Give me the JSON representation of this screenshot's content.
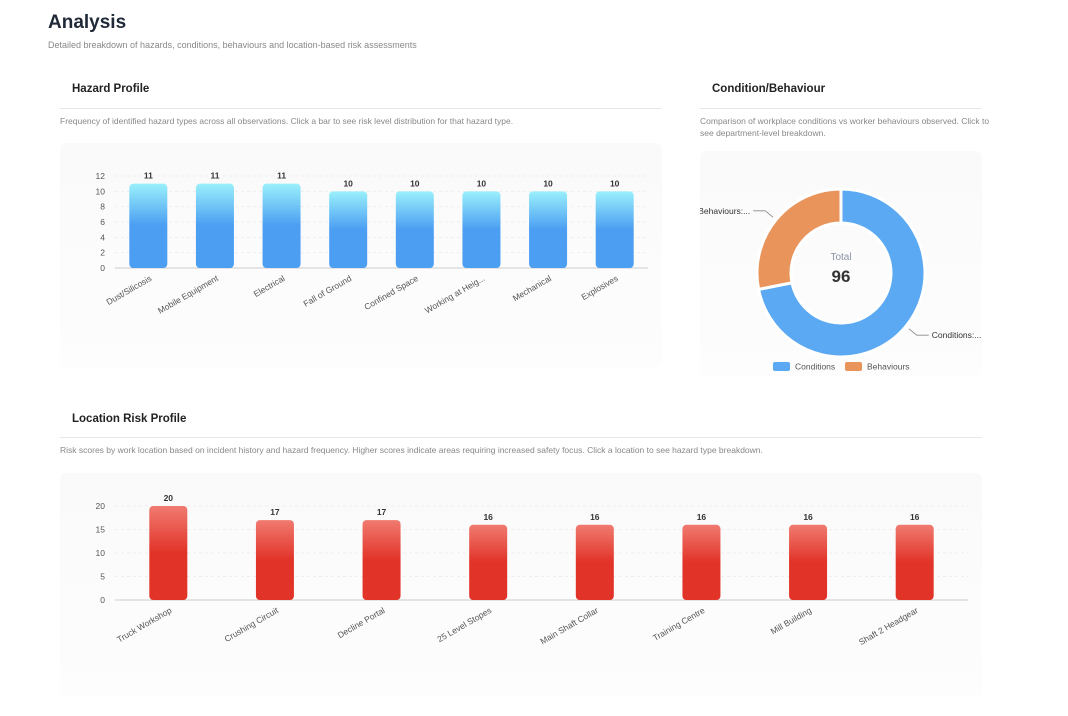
{
  "page": {
    "title": "Analysis",
    "subtitle": "Detailed breakdown of hazards, conditions, behaviours and location-based risk assessments"
  },
  "hazard": {
    "title": "Hazard Profile",
    "description": "Frequency of identified hazard types across all observations. Click a bar to see risk level distribution for that hazard type."
  },
  "condition": {
    "title": "Condition/Behaviour",
    "description": "Comparison of workplace conditions vs worker behaviours observed. Click to see department-level breakdown."
  },
  "location": {
    "title": "Location Risk Profile",
    "description": "Risk scores by work location based on incident history and hazard frequency. Higher scores indicate areas requiring increased safety focus. Click a location to see hazard type breakdown."
  },
  "chart_data": [
    {
      "type": "bar",
      "categories": [
        "Dust/Silicosis",
        "Mobile Equipment",
        "Electrical",
        "Fall of Ground",
        "Confined Space",
        "Working at Heig...",
        "Mechanical",
        "Explosives"
      ],
      "values": [
        11,
        11,
        11,
        10,
        10,
        10,
        10,
        10
      ],
      "ylim": [
        0,
        12
      ],
      "yticks": [
        0,
        2,
        4,
        6,
        8,
        10,
        12
      ],
      "grid": true,
      "color_top": "#9af0fb",
      "color_bottom": "#4b9ef2"
    },
    {
      "type": "pie",
      "variant": "donut",
      "center_label": "Total",
      "center_value": "96",
      "slices": [
        {
          "name": "Conditions",
          "label": "Conditions:...",
          "value": 69,
          "color": "#5aa9f2"
        },
        {
          "name": "Behaviours",
          "label": "Behaviours:...",
          "value": 27,
          "color": "#e8945a"
        }
      ],
      "legend": "bottom"
    },
    {
      "type": "bar",
      "categories": [
        "Truck Workshop",
        "Crushing Circuit",
        "Decline Portal",
        "25 Level Stopes",
        "Main Shaft Collar",
        "Training Centre",
        "Mill Building",
        "Shaft 2 Headgear"
      ],
      "values": [
        20,
        17,
        17,
        16,
        16,
        16,
        16,
        16
      ],
      "ylim": [
        0,
        20
      ],
      "yticks": [
        0,
        5,
        10,
        15,
        20
      ],
      "grid": true,
      "color_top": "#f07a70",
      "color_bottom": "#e23328"
    }
  ]
}
